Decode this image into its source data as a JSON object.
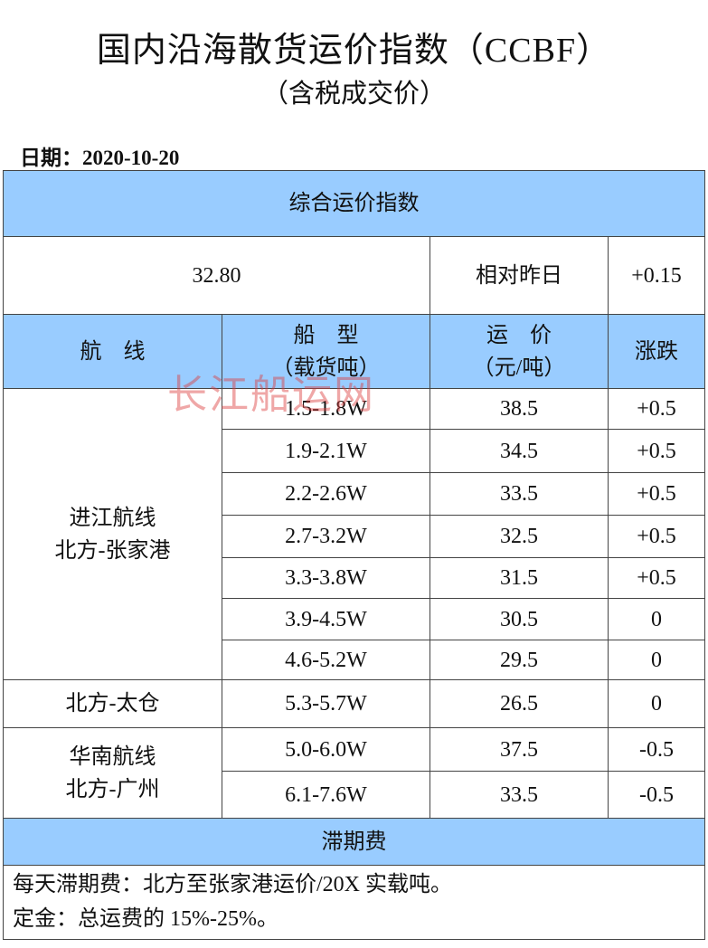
{
  "header": {
    "title": "国内沿海散货运价指数（CCBF）",
    "subtitle": "（含税成交价）",
    "date_label": "日期：",
    "date": "2020-10-20"
  },
  "table": {
    "section_title": "综合运价指数",
    "index_value": "32.80",
    "compare_label": "相对昨日",
    "index_change": "+0.15",
    "columns": [
      [
        "航　线"
      ],
      [
        "船　型",
        "（载货吨）"
      ],
      [
        "运　价",
        "（元/吨）"
      ],
      [
        "涨跌"
      ]
    ],
    "groups": [
      {
        "route": [
          "进江航线",
          "北方-张家港"
        ],
        "rows": [
          [
            "1.5-1.8W",
            "38.5",
            "+0.5"
          ],
          [
            "1.9-2.1W",
            "34.5",
            "+0.5"
          ],
          [
            "2.2-2.6W",
            "33.5",
            "+0.5"
          ],
          [
            "2.7-3.2W",
            "32.5",
            "+0.5"
          ],
          [
            "3.3-3.8W",
            "31.5",
            "+0.5"
          ],
          [
            "3.9-4.5W",
            "30.5",
            "0"
          ],
          [
            "4.6-5.2W",
            "29.5",
            "0"
          ]
        ]
      },
      {
        "route": [
          "北方-太仓"
        ],
        "rows": [
          [
            "5.3-5.7W",
            "26.5",
            "0"
          ]
        ]
      },
      {
        "route": [
          "华南航线",
          "北方-广州"
        ],
        "rows": [
          [
            "5.0-6.0W",
            "37.5",
            "-0.5"
          ],
          [
            "6.1-7.6W",
            "33.5",
            "-0.5"
          ]
        ]
      }
    ],
    "footer_title": "滞期费",
    "notes": [
      "每天滞期费：北方至张家港运价/20X 实载吨。",
      "定金：总运费的 15%-25%。"
    ]
  },
  "watermark": "长江船运网"
}
